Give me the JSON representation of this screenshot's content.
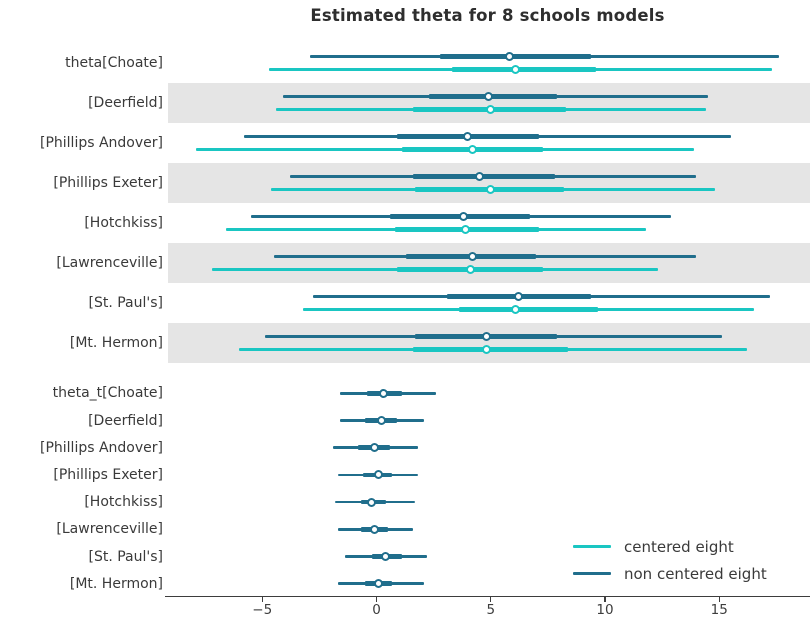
{
  "chart_data": {
    "type": "forest",
    "title": "Estimated theta for 8 schools models",
    "xlabel": "",
    "ylabel": "",
    "x_ticks": [
      -5,
      0,
      5,
      10,
      15
    ],
    "xlim": [
      -9.3,
      19.0
    ],
    "grid": false,
    "legend_position": "lower right",
    "legend": [
      {
        "label": "centered eight",
        "color": "#1ac6c2"
      },
      {
        "label": "non centered eight",
        "color": "#206e8c"
      }
    ],
    "band_color": "#e5e5e5",
    "interval_note": "thin line = wide credible interval, thick line = interquartile range, circle = point estimate",
    "rows": [
      {
        "group": "theta",
        "label": "theta[Choate]",
        "series": [
          {
            "model": "non centered eight",
            "color": "#206e8c",
            "lo": -2.9,
            "q1": 2.8,
            "median": 5.8,
            "q3": 9.4,
            "hi": 17.6
          },
          {
            "model": "centered eight",
            "color": "#1ac6c2",
            "lo": -4.7,
            "q1": 3.3,
            "median": 6.1,
            "q3": 9.6,
            "hi": 17.3
          }
        ]
      },
      {
        "group": "theta",
        "label": "[Deerfield]",
        "series": [
          {
            "model": "non centered eight",
            "color": "#206e8c",
            "lo": -4.1,
            "q1": 2.3,
            "median": 4.9,
            "q3": 7.9,
            "hi": 14.5
          },
          {
            "model": "centered eight",
            "color": "#1ac6c2",
            "lo": -4.4,
            "q1": 1.6,
            "median": 5.0,
            "q3": 8.3,
            "hi": 14.4
          }
        ]
      },
      {
        "group": "theta",
        "label": "[Phillips Andover]",
        "series": [
          {
            "model": "non centered eight",
            "color": "#206e8c",
            "lo": -5.8,
            "q1": 0.9,
            "median": 4.0,
            "q3": 7.1,
            "hi": 15.5
          },
          {
            "model": "centered eight",
            "color": "#1ac6c2",
            "lo": -7.9,
            "q1": 1.1,
            "median": 4.2,
            "q3": 7.3,
            "hi": 13.9
          }
        ]
      },
      {
        "group": "theta",
        "label": "[Phillips Exeter]",
        "series": [
          {
            "model": "non centered eight",
            "color": "#206e8c",
            "lo": -3.8,
            "q1": 1.6,
            "median": 4.5,
            "q3": 7.8,
            "hi": 14.0
          },
          {
            "model": "centered eight",
            "color": "#1ac6c2",
            "lo": -4.6,
            "q1": 1.7,
            "median": 5.0,
            "q3": 8.2,
            "hi": 14.8
          }
        ]
      },
      {
        "group": "theta",
        "label": "[Hotchkiss]",
        "series": [
          {
            "model": "non centered eight",
            "color": "#206e8c",
            "lo": -5.5,
            "q1": 0.6,
            "median": 3.8,
            "q3": 6.7,
            "hi": 12.9
          },
          {
            "model": "centered eight",
            "color": "#1ac6c2",
            "lo": -6.6,
            "q1": 0.8,
            "median": 3.9,
            "q3": 7.1,
            "hi": 11.8
          }
        ]
      },
      {
        "group": "theta",
        "label": "[Lawrenceville]",
        "series": [
          {
            "model": "non centered eight",
            "color": "#206e8c",
            "lo": -4.5,
            "q1": 1.3,
            "median": 4.2,
            "q3": 7.0,
            "hi": 14.0
          },
          {
            "model": "centered eight",
            "color": "#1ac6c2",
            "lo": -7.2,
            "q1": 0.9,
            "median": 4.1,
            "q3": 7.3,
            "hi": 12.3
          }
        ]
      },
      {
        "group": "theta",
        "label": "[St. Paul's]",
        "series": [
          {
            "model": "non centered eight",
            "color": "#206e8c",
            "lo": -2.8,
            "q1": 3.1,
            "median": 6.2,
            "q3": 9.4,
            "hi": 17.2
          },
          {
            "model": "centered eight",
            "color": "#1ac6c2",
            "lo": -3.2,
            "q1": 3.6,
            "median": 6.1,
            "q3": 9.7,
            "hi": 16.5
          }
        ]
      },
      {
        "group": "theta",
        "label": "[Mt. Hermon]",
        "series": [
          {
            "model": "non centered eight",
            "color": "#206e8c",
            "lo": -4.9,
            "q1": 1.7,
            "median": 4.8,
            "q3": 7.9,
            "hi": 15.1
          },
          {
            "model": "centered eight",
            "color": "#1ac6c2",
            "lo": -6.0,
            "q1": 1.6,
            "median": 4.8,
            "q3": 8.4,
            "hi": 16.2
          }
        ]
      },
      {
        "group": "theta_t",
        "label": "theta_t[Choate]",
        "series": [
          {
            "model": "non centered eight",
            "color": "#206e8c",
            "lo": -1.6,
            "q1": -0.4,
            "median": 0.3,
            "q3": 1.1,
            "hi": 2.6
          }
        ]
      },
      {
        "group": "theta_t",
        "label": "[Deerfield]",
        "series": [
          {
            "model": "non centered eight",
            "color": "#206e8c",
            "lo": -1.6,
            "q1": -0.5,
            "median": 0.2,
            "q3": 0.9,
            "hi": 2.1
          }
        ]
      },
      {
        "group": "theta_t",
        "label": "[Phillips Andover]",
        "series": [
          {
            "model": "non centered eight",
            "color": "#206e8c",
            "lo": -1.9,
            "q1": -0.8,
            "median": -0.1,
            "q3": 0.6,
            "hi": 1.8
          }
        ]
      },
      {
        "group": "theta_t",
        "label": "[Phillips Exeter]",
        "series": [
          {
            "model": "non centered eight",
            "color": "#206e8c",
            "lo": -1.7,
            "q1": -0.6,
            "median": 0.1,
            "q3": 0.7,
            "hi": 1.8
          }
        ]
      },
      {
        "group": "theta_t",
        "label": "[Hotchkiss]",
        "series": [
          {
            "model": "non centered eight",
            "color": "#206e8c",
            "lo": -1.8,
            "q1": -0.7,
            "median": -0.2,
            "q3": 0.4,
            "hi": 1.7
          }
        ]
      },
      {
        "group": "theta_t",
        "label": "[Lawrenceville]",
        "series": [
          {
            "model": "non centered eight",
            "color": "#206e8c",
            "lo": -1.7,
            "q1": -0.7,
            "median": -0.1,
            "q3": 0.5,
            "hi": 1.6
          }
        ]
      },
      {
        "group": "theta_t",
        "label": "[St. Paul's]",
        "series": [
          {
            "model": "non centered eight",
            "color": "#206e8c",
            "lo": -1.4,
            "q1": -0.2,
            "median": 0.4,
            "q3": 1.1,
            "hi": 2.2
          }
        ]
      },
      {
        "group": "theta_t",
        "label": "[Mt. Hermon]",
        "series": [
          {
            "model": "non centered eight",
            "color": "#206e8c",
            "lo": -1.7,
            "q1": -0.5,
            "median": 0.1,
            "q3": 0.7,
            "hi": 2.1
          }
        ]
      }
    ]
  }
}
